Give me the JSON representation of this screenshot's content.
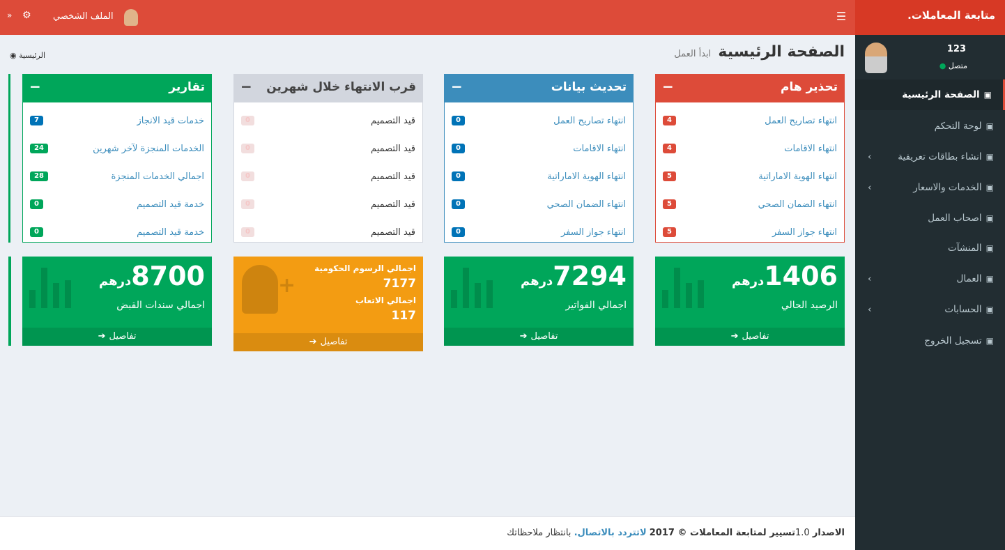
{
  "brand": "متابعة المعاملات.",
  "navbar": {
    "profile": "الملف الشخصي"
  },
  "sidebar": {
    "user": {
      "name": "123",
      "status": "متصل"
    },
    "menu": [
      {
        "label": "الصفحة الرئيسية",
        "arrow": false
      },
      {
        "label": "لوحة التحكم",
        "arrow": false
      },
      {
        "label": "انشاء بطاقات تعريفية",
        "arrow": true
      },
      {
        "label": "الخدمات والاسعار",
        "arrow": true
      },
      {
        "label": "اصحاب العمل",
        "arrow": false
      },
      {
        "label": "المنشآت",
        "arrow": false
      },
      {
        "label": "العمال",
        "arrow": true
      },
      {
        "label": "الحسابات",
        "arrow": true
      },
      {
        "label": "تسجيل الخروج",
        "arrow": false
      }
    ]
  },
  "header": {
    "title": "الصفحة الرئيسية",
    "subtitle": "ابدأ العمل",
    "breadcrumb": "الرئيسية"
  },
  "boxes": [
    {
      "title": "تحذير هام",
      "items": [
        {
          "label": "انتهاء تصاريح العمل",
          "badge": "4"
        },
        {
          "label": "انتهاء الاقامات",
          "badge": "4"
        },
        {
          "label": "انتهاء الهوية الاماراتية",
          "badge": "5"
        },
        {
          "label": "انتهاء الضمان الصحي",
          "badge": "5"
        },
        {
          "label": "انتهاء جواز السفر",
          "badge": "5"
        }
      ]
    },
    {
      "title": "تحديث بيانات",
      "items": [
        {
          "label": "انتهاء تصاريح العمل",
          "badge": "0"
        },
        {
          "label": "انتهاء الاقامات",
          "badge": "0"
        },
        {
          "label": "انتهاء الهوية الاماراتية",
          "badge": "0"
        },
        {
          "label": "انتهاء الضمان الصحي",
          "badge": "0"
        },
        {
          "label": "انتهاء جواز السفر",
          "badge": "0"
        }
      ]
    },
    {
      "title": "قرب الانتهاء خلال شهرين",
      "items": [
        {
          "label": "قيد التصميم",
          "badge": "0"
        },
        {
          "label": "قيد التصميم",
          "badge": "0"
        },
        {
          "label": "قيد التصميم",
          "badge": "0"
        },
        {
          "label": "قيد التصميم",
          "badge": "0"
        },
        {
          "label": "قيد التصميم",
          "badge": "0"
        }
      ]
    },
    {
      "title": "تقارير",
      "items": [
        {
          "label": "خدمات قيد الانجاز",
          "badge": "7"
        },
        {
          "label": "الخدمات المنجزة لآخر شهرين",
          "badge": "24"
        },
        {
          "label": "اجمالي الخدمات المنجزة",
          "badge": "28"
        },
        {
          "label": "خدمة قيد التصميم",
          "badge": "0"
        },
        {
          "label": "خدمة قيد التصميم",
          "badge": "0"
        }
      ]
    }
  ],
  "stats": [
    {
      "value": "1406",
      "unit": "درهم",
      "label": "الرصيد الحالي",
      "link": "تفاصيل"
    },
    {
      "value": "7294",
      "unit": "درهم",
      "label": "اجمالي الفواتير",
      "link": "تفاصيل"
    },
    {
      "lines": [
        {
          "label": "اجمالي الرسوم الحكومية",
          "value": "7177"
        },
        {
          "label": "اجمالي الاتعاب",
          "value": "117"
        }
      ],
      "link": "تفاصيل"
    },
    {
      "value": "8700",
      "unit": "درهم",
      "label": "اجمالي سندات القبض",
      "link": "تفاصيل"
    }
  ],
  "footer": {
    "version_label": "الاصدار",
    "version": "1.0",
    "copyright": "تسيير لمتابعة المعاملات © 2017",
    "link": "لاتتردد بالاتصال.",
    "note": "بانتظار ملاحظاتك"
  }
}
